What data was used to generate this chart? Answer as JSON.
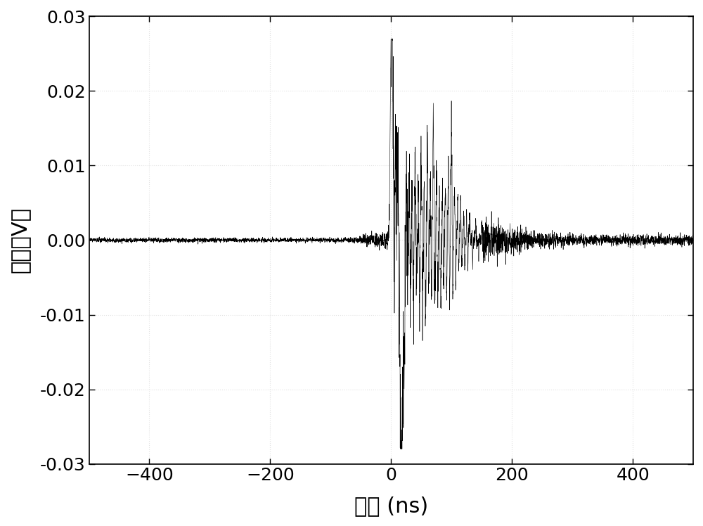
{
  "title": "",
  "xlabel": "时间 (ns)",
  "ylabel": "幅値（V）",
  "xlim": [
    -500,
    500
  ],
  "ylim": [
    -0.03,
    0.03
  ],
  "xticks": [
    -400,
    -200,
    0,
    200,
    400
  ],
  "yticks": [
    -0.03,
    -0.02,
    -0.01,
    0.0,
    0.01,
    0.02,
    0.03
  ],
  "background_color": "#ffffff",
  "line_color": "#000000",
  "figsize": [
    10.0,
    7.48
  ],
  "dpi": 100,
  "xlabel_fontsize": 22,
  "ylabel_fontsize": 22,
  "tick_fontsize": 18,
  "grid": true,
  "grid_color": "#d0d0d0",
  "grid_alpha": 0.6,
  "grid_linestyle": ":",
  "grid_linewidth": 0.8
}
